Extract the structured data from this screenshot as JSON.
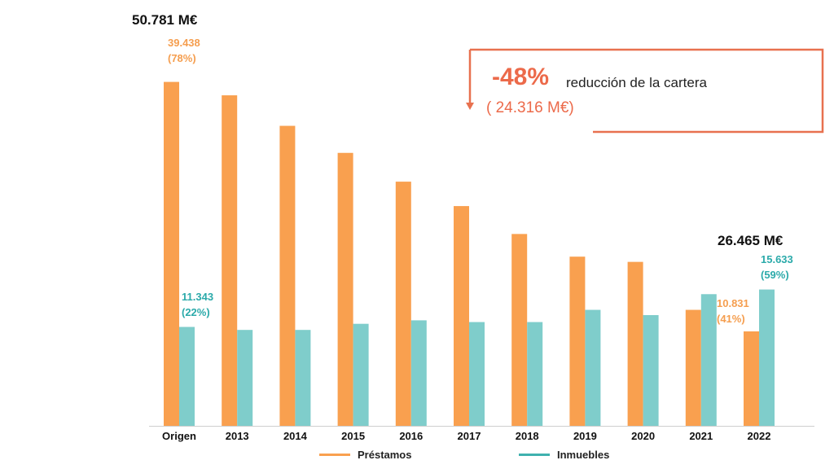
{
  "chart_data": {
    "type": "bar",
    "categories": [
      "Origen",
      "2013",
      "2014",
      "2015",
      "2016",
      "2017",
      "2018",
      "2019",
      "2020",
      "2021",
      "2022"
    ],
    "series": [
      {
        "name": "Préstamos",
        "color": "#F9A04F",
        "values": [
          39438,
          37900,
          34400,
          31300,
          28000,
          25200,
          22000,
          19400,
          18800,
          13300,
          10831
        ]
      },
      {
        "name": "Inmuebles",
        "color": "#7FCDCB",
        "values": [
          11343,
          11000,
          11000,
          11700,
          12100,
          11900,
          11900,
          13300,
          12700,
          15100,
          15633
        ]
      }
    ],
    "ylim": [
      0,
      40800
    ],
    "legend_position": "bottom",
    "grid": false
  },
  "totals": {
    "origin": "50.781 M€",
    "final": "26.465 M€"
  },
  "labels": {
    "origin_loans_value": "39.438",
    "origin_loans_pct": "(78%)",
    "origin_assets_value": "11.343",
    "origin_assets_pct": "(22%)",
    "final_loans_value": "10.831",
    "final_loans_pct": "(41%)",
    "final_assets_value": "15.633",
    "final_assets_pct": "(59%)"
  },
  "callout": {
    "percent": "-48%",
    "text": "reducción de la cartera",
    "amount": "( 24.316 M€)",
    "color": "#EC6A4A"
  }
}
